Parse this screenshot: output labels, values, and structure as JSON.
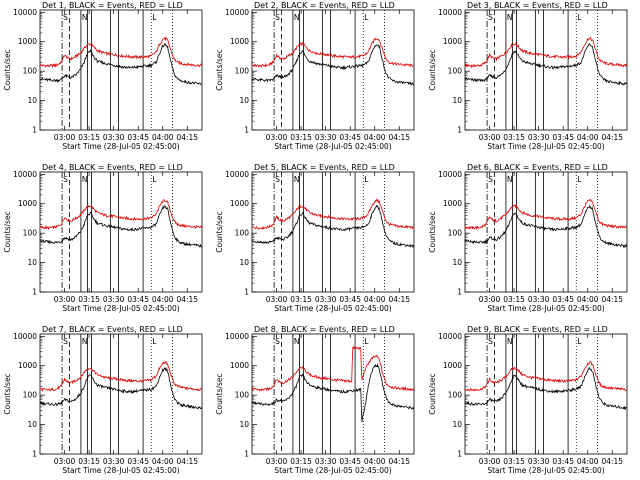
{
  "chart_data": {
    "type": "line",
    "panels": [
      {
        "title": "Det 1, BLACK = Events, RED = LLD",
        "xlabel": "Start Time (28-Jul-05 02:45:00)",
        "ylabel": "Counts/sec",
        "event": "evt1",
        "lld": "lld1"
      },
      {
        "title": "Det 2, BLACK = Events, RED = LLD",
        "xlabel": "Start Time (28-Jul-05 02:45:00)",
        "ylabel": "Counts/sec",
        "event": "evt1",
        "lld": "lld1"
      },
      {
        "title": "Det 3, BLACK = Events, RED = LLD",
        "xlabel": "Start Time (28-Jul-05 02:45:00)",
        "ylabel": "Counts/sec",
        "event": "evt1",
        "lld": "lld1"
      },
      {
        "title": "Det 4, BLACK = Events, RED = LLD",
        "xlabel": "Start Time (28-Jul-05 02:45:00)",
        "ylabel": "Counts/sec",
        "event": "evt1",
        "lld": "lld1"
      },
      {
        "title": "Det 5, BLACK = Events, RED = LLD",
        "xlabel": "Start Time (28-Jul-05 02:45:00)",
        "ylabel": "Counts/sec",
        "event": "evt1",
        "lld": "lld1"
      },
      {
        "title": "Det 6, BLACK = Events, RED = LLD",
        "xlabel": "Start Time (28-Jul-05 02:45:00)",
        "ylabel": "Counts/sec",
        "event": "evt1",
        "lld": "lld1"
      },
      {
        "title": "Det 7, BLACK = Events, RED = LLD",
        "xlabel": "Start Time (28-Jul-05 02:45:00)",
        "ylabel": "Counts/sec",
        "event": "evt1",
        "lld": "lld1"
      },
      {
        "title": "Det 8, BLACK = Events, RED = LLD",
        "xlabel": "Start Time (28-Jul-05 02:45:00)",
        "ylabel": "Counts/sec",
        "event": "evt8",
        "lld": "lld8"
      },
      {
        "title": "Det 9, BLACK = Events, RED = LLD",
        "xlabel": "Start Time (28-Jul-05 02:45:00)",
        "ylabel": "Counts/sec",
        "event": "evt1",
        "lld": "lld1"
      }
    ],
    "x_tick_labels": [
      "03:00",
      "03:15",
      "03:30",
      "03:45",
      "04:00",
      "04:15"
    ],
    "x_tick_minutes": [
      180,
      195,
      210,
      225,
      240,
      255
    ],
    "xlim_minutes": [
      165,
      264
    ],
    "y_tick_labels": [
      "1",
      "10",
      "100",
      "1000",
      "10000"
    ],
    "y_tick_values": [
      1,
      10,
      100,
      1000,
      10000
    ],
    "ylim": [
      1,
      12000
    ],
    "y_scale": "log",
    "markers": [
      {
        "time_minutes": 178.5,
        "style": "dash-dot",
        "label": "S"
      },
      {
        "time_minutes": 183,
        "style": "dashed",
        "label": ""
      },
      {
        "time_minutes": 190,
        "style": "solid",
        "label": "N"
      },
      {
        "time_minutes": 194,
        "style": "solid",
        "label": ""
      },
      {
        "time_minutes": 196.5,
        "style": "solid",
        "label": ""
      },
      {
        "time_minutes": 208,
        "style": "solid",
        "label": ""
      },
      {
        "time_minutes": 213,
        "style": "solid",
        "label": ""
      },
      {
        "time_minutes": 228,
        "style": "solid",
        "label": ""
      },
      {
        "time_minutes": 233,
        "style": "dotted",
        "label": "L"
      },
      {
        "time_minutes": 246,
        "style": "dotted",
        "label": ""
      }
    ],
    "series": {
      "evt1": {
        "color": "#000000",
        "minutes": [
          165,
          170,
          175,
          178,
          180,
          182,
          184,
          187,
          190,
          192,
          194,
          196,
          198,
          200,
          205,
          210,
          215,
          220,
          225,
          230,
          233,
          236,
          238,
          240,
          241,
          242,
          243,
          245,
          247,
          249,
          252,
          255,
          258,
          261,
          264
        ],
        "values": [
          55,
          50,
          48,
          52,
          70,
          65,
          60,
          75,
          120,
          200,
          400,
          480,
          300,
          220,
          180,
          160,
          140,
          130,
          140,
          150,
          160,
          200,
          400,
          700,
          800,
          750,
          650,
          200,
          80,
          55,
          45,
          42,
          40,
          38,
          36
        ]
      },
      "lld1": {
        "color": "#dd0000",
        "minutes": [
          165,
          170,
          175,
          178,
          180,
          182,
          184,
          187,
          190,
          192,
          194,
          196,
          198,
          200,
          205,
          210,
          215,
          220,
          225,
          230,
          233,
          236,
          238,
          240,
          241,
          242,
          243,
          245,
          247,
          249,
          252,
          255,
          258,
          261,
          264
        ],
        "values": [
          160,
          150,
          160,
          200,
          350,
          280,
          260,
          320,
          420,
          600,
          800,
          850,
          650,
          500,
          400,
          370,
          330,
          310,
          300,
          310,
          330,
          450,
          800,
          1200,
          1300,
          1250,
          1100,
          500,
          250,
          200,
          180,
          170,
          165,
          160,
          155
        ]
      },
      "evt8": {
        "color": "#000000",
        "minutes": [
          165,
          170,
          175,
          178,
          180,
          182,
          184,
          187,
          190,
          192,
          194,
          196,
          198,
          200,
          205,
          210,
          215,
          220,
          225,
          230,
          231.5,
          232,
          234,
          236,
          238,
          240,
          241,
          242,
          243,
          245,
          247,
          249,
          252,
          255,
          258,
          261,
          264
        ],
        "values": [
          55,
          50,
          48,
          52,
          70,
          65,
          60,
          75,
          120,
          200,
          400,
          480,
          300,
          220,
          180,
          160,
          140,
          130,
          140,
          150,
          160,
          12,
          40,
          200,
          600,
          1000,
          1050,
          950,
          700,
          200,
          80,
          55,
          45,
          42,
          40,
          38,
          36
        ]
      },
      "lld8": {
        "color": "#dd0000",
        "minutes": [
          165,
          170,
          175,
          178,
          180,
          182,
          184,
          187,
          190,
          192,
          194,
          196,
          198,
          200,
          205,
          210,
          215,
          220,
          225,
          226,
          226.5,
          230,
          231.5,
          232,
          234,
          236,
          238,
          240,
          241,
          242,
          243,
          245,
          247,
          249,
          252,
          255,
          258,
          261,
          264
        ],
        "values": [
          160,
          150,
          160,
          200,
          350,
          280,
          260,
          320,
          420,
          600,
          800,
          850,
          650,
          500,
          400,
          370,
          330,
          310,
          300,
          300,
          4000,
          4000,
          3800,
          300,
          700,
          1200,
          1700,
          2000,
          2100,
          1900,
          1500,
          500,
          250,
          200,
          180,
          170,
          165,
          160,
          155
        ]
      }
    }
  }
}
